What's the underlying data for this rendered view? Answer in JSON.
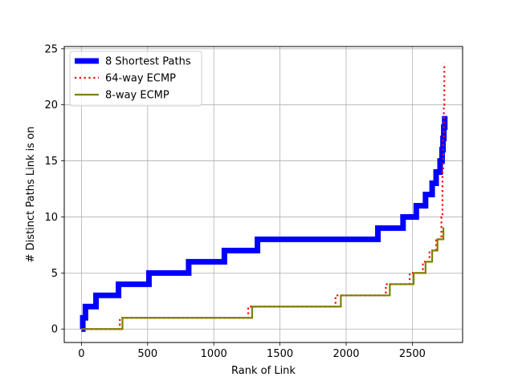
{
  "chart_data": {
    "type": "line",
    "title": "",
    "xlabel": "Rank of Link",
    "ylabel": "# Distinct Paths Link is on",
    "xlim": [
      -130,
      2880
    ],
    "ylim": [
      -1.2,
      25.2
    ],
    "xticks": [
      0,
      500,
      1000,
      1500,
      2000,
      2500
    ],
    "yticks": [
      0,
      5,
      10,
      15,
      20,
      25
    ],
    "grid": true,
    "legend_position": "upper left",
    "series": [
      {
        "name": "8 Shortest Paths",
        "color": "#0000ff",
        "style": "solid",
        "width": "thick",
        "step_x": [
          0,
          10,
          30,
          110,
          280,
          510,
          810,
          1080,
          1330,
          2240,
          2430,
          2530,
          2600,
          2650,
          2680,
          2710,
          2725,
          2732,
          2738,
          2745
        ],
        "step_y": [
          0,
          1,
          2,
          3,
          4,
          5,
          6,
          7,
          8,
          9,
          10,
          11,
          12,
          13,
          14,
          15,
          16,
          17,
          18,
          19
        ],
        "x_end": 2745
      },
      {
        "name": "64-way ECMP",
        "color": "#ff0000",
        "style": "dotted",
        "width": "medium",
        "step_x": [
          0,
          290,
          1260,
          1920,
          2300,
          2480,
          2580,
          2630,
          2680,
          2720,
          2728,
          2733,
          2738,
          2742
        ],
        "step_y": [
          0,
          1,
          2,
          3,
          4,
          5,
          6,
          7,
          8,
          10,
          14,
          17,
          20,
          23.7
        ],
        "x_end": 2742
      },
      {
        "name": "8-way ECMP",
        "color": "#808000",
        "style": "solid",
        "width": "medium",
        "step_x": [
          0,
          310,
          1290,
          1960,
          2330,
          2510,
          2600,
          2650,
          2690,
          2735
        ],
        "step_y": [
          0,
          1,
          2,
          3,
          4,
          5,
          6,
          7,
          8,
          9
        ],
        "x_end": 2740
      }
    ]
  }
}
